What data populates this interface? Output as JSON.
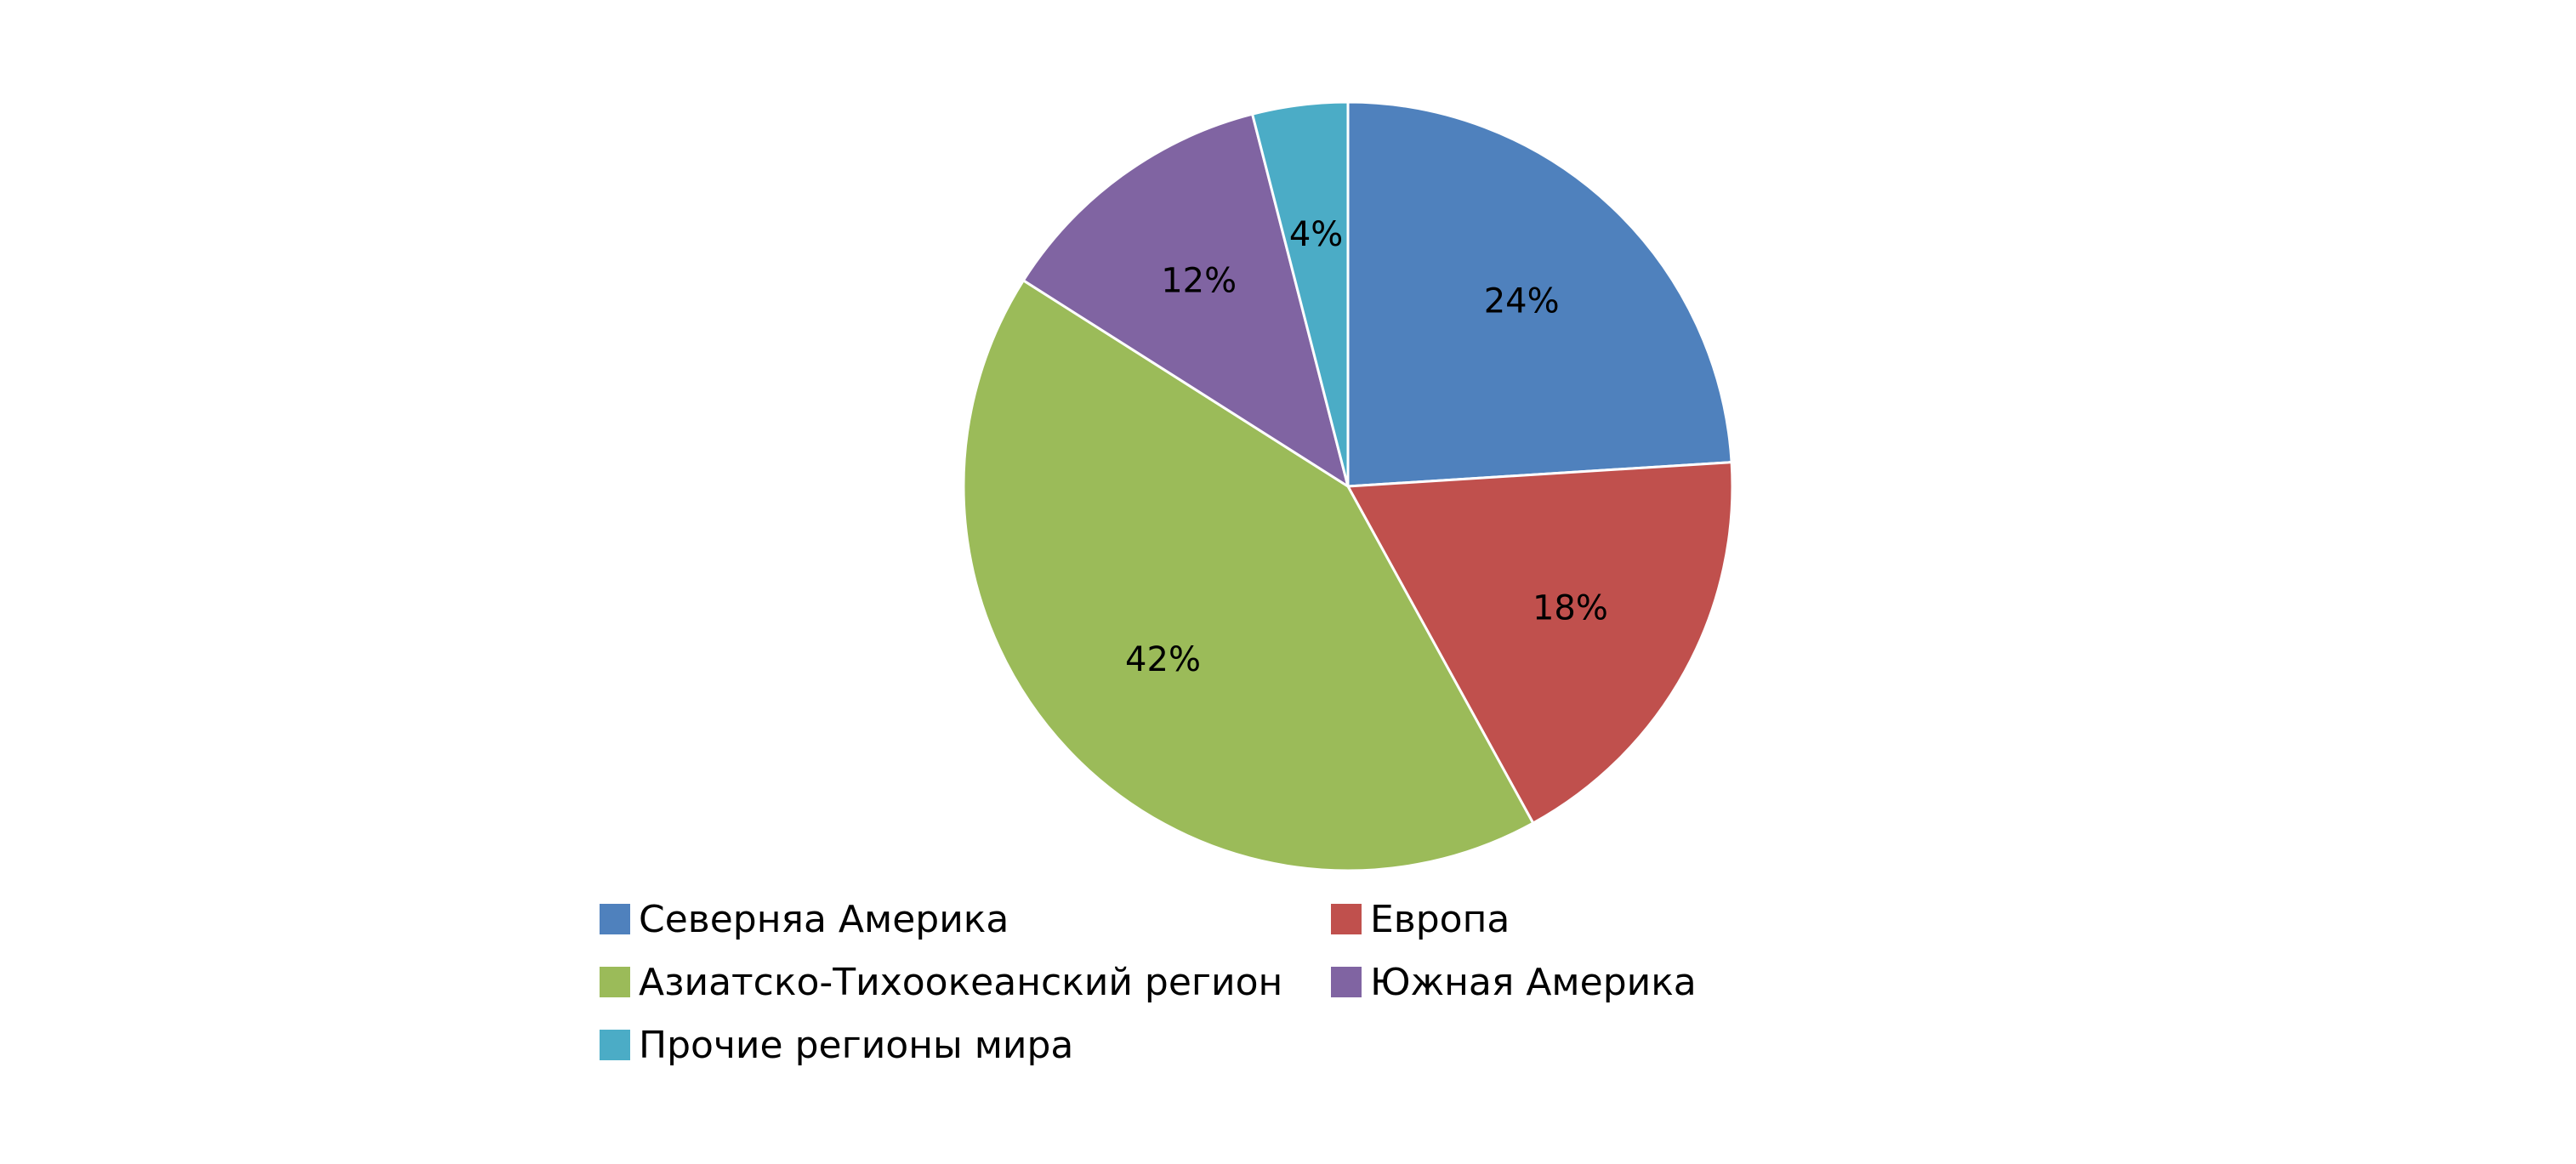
{
  "chart_data": {
    "type": "pie",
    "title": "",
    "categories": [
      "Северняа Америка",
      "Европа",
      "Азиатско-Тихоокеанский регион",
      "Южная Америка",
      "Прочие регионы мира"
    ],
    "values": [
      24,
      18,
      42,
      12,
      4
    ],
    "data_labels": [
      "24%",
      "18%",
      "42%",
      "12%",
      "4%"
    ],
    "colors": [
      "#4F81BD",
      "#C0504D",
      "#9BBB59",
      "#8064A2",
      "#4BACC6"
    ],
    "start_angle_deg": 0,
    "direction": "clockwise",
    "legend_position": "bottom",
    "grid": false
  }
}
